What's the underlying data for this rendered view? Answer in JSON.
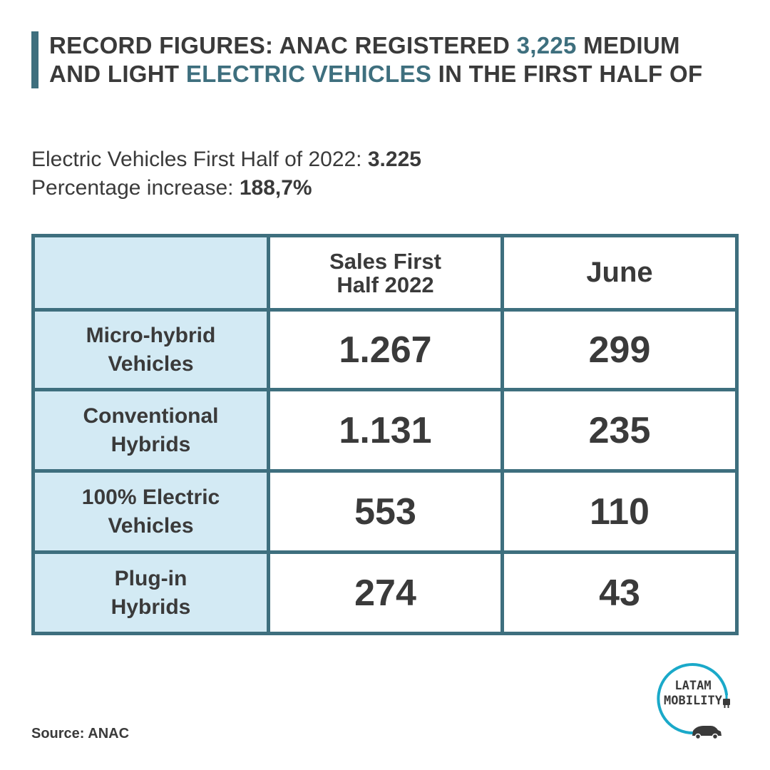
{
  "header": {
    "title_part1": "RECORD FIGURES: ANAC REGISTERED ",
    "title_highlight1": "3,225",
    "title_part2": " MEDIUM AND LIGHT ",
    "title_highlight2": "ELECTRIC VEHICLES",
    "title_part3": " IN THE FIRST HALF OF"
  },
  "stats": {
    "ev_label": "Electric Vehicles First Half of 2022: ",
    "ev_value": "3.225",
    "increase_label": "Percentage increase: ",
    "increase_value": "188,7%"
  },
  "table": {
    "columns": [
      "",
      "Sales First\nHalf 2022",
      "June"
    ],
    "rows": [
      {
        "label": "Micro-hybrid\nVehicles",
        "sales_first_half": "1.267",
        "june": "299"
      },
      {
        "label": "Conventional\nHybrids",
        "sales_first_half": "1.131",
        "june": "235"
      },
      {
        "label": "100% Electric\nVehicles",
        "sales_first_half": "553",
        "june": "110"
      },
      {
        "label": "Plug-in\nHybrids",
        "sales_first_half": "274",
        "june": "43"
      }
    ]
  },
  "footer": {
    "source": "Source: ANAC"
  },
  "logo": {
    "line1": "LATAM",
    "line2": "MOBILITY",
    "icons": [
      "plug-icon",
      "car-icon"
    ],
    "ring_color": "#1aa9c9"
  },
  "colors": {
    "accent": "#3e6f7e",
    "cell_fill": "#d3eaf4",
    "text": "#3a3a3a"
  }
}
